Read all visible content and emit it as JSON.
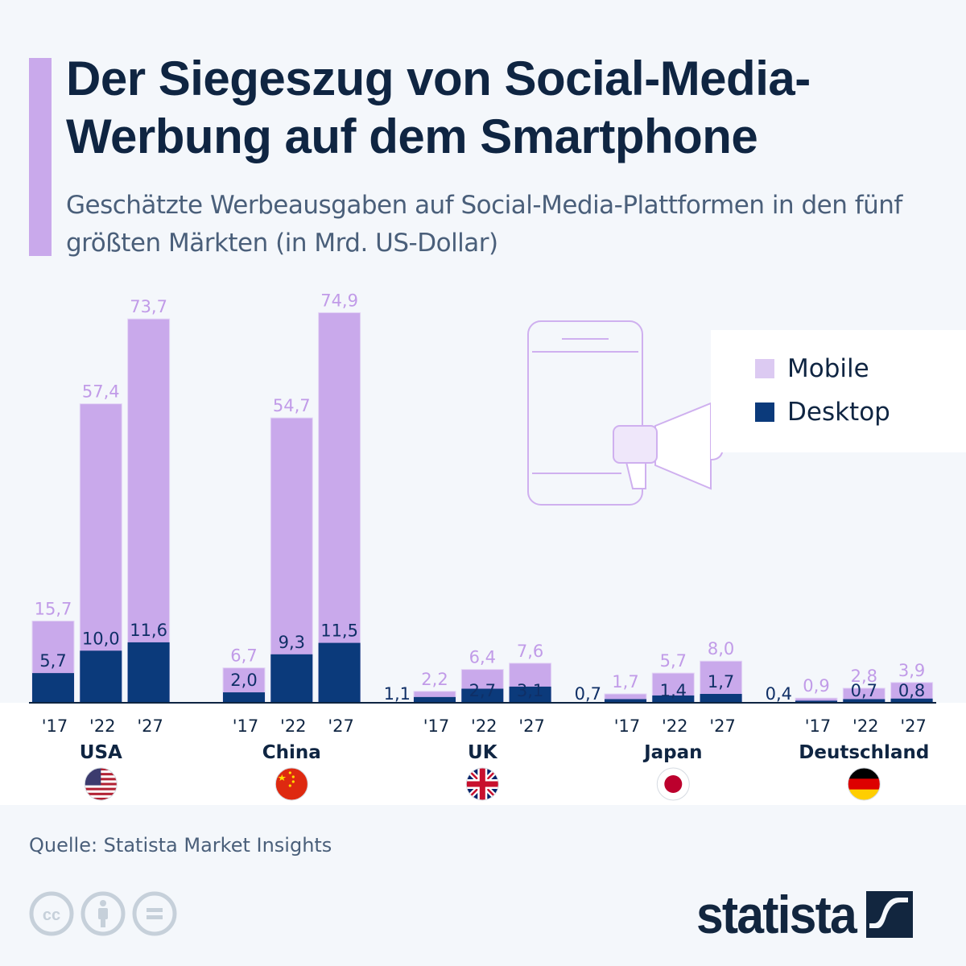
{
  "header": {
    "title": "Der Siegeszug von Social-Media-Werbung auf dem Smartphone",
    "subtitle": "Geschätzte Werbeausgaben auf Social-Media-Plattformen in den fünf größten Märkten (in Mrd. US-Dollar)"
  },
  "legend": {
    "items": [
      {
        "label": "Mobile",
        "color": "#dccaf2"
      },
      {
        "label": "Desktop",
        "color": "#0b3a7b"
      }
    ]
  },
  "footer": {
    "source": "Quelle: Statista Market Insights",
    "logo_text": "statista",
    "license_icons": [
      "cc-icon",
      "attribution-icon",
      "no-derivatives-icon"
    ]
  },
  "colors": {
    "mobile": "#c9a9eb",
    "mobile_label": "#c19be8",
    "desktop": "#0b3a7b",
    "desktop_label": "#0f2f66",
    "text_dark": "#0f2542"
  },
  "chart_data": {
    "type": "bar",
    "stacked": "overlay",
    "title": "Der Siegeszug von Social-Media-Werbung auf dem Smartphone",
    "subtitle": "Geschätzte Werbeausgaben auf Social-Media-Plattformen in den fünf größten Märkten (in Mrd. US-Dollar)",
    "xlabel": "",
    "ylabel": "Mrd. US-Dollar",
    "ylim": [
      0,
      75
    ],
    "grid": false,
    "legend_position": "right",
    "year_labels": [
      "'17",
      "'22",
      "'27"
    ],
    "groups": [
      {
        "country": "USA",
        "flag": "us-flag-icon",
        "mobile": [
          15.7,
          57.4,
          73.7
        ],
        "desktop": [
          5.7,
          10.0,
          11.6
        ],
        "mobile_labels": [
          "15,7",
          "57,4",
          "73,7"
        ],
        "desktop_labels": [
          "5,7",
          "10,0",
          "11,6"
        ]
      },
      {
        "country": "China",
        "flag": "china-flag-icon",
        "mobile": [
          6.7,
          54.7,
          74.9
        ],
        "desktop": [
          2.0,
          9.3,
          11.5
        ],
        "mobile_labels": [
          "6,7",
          "54,7",
          "74,9"
        ],
        "desktop_labels": [
          "2,0",
          "9,3",
          "11,5"
        ]
      },
      {
        "country": "UK",
        "flag": "uk-flag-icon",
        "mobile": [
          2.2,
          6.4,
          7.6
        ],
        "desktop": [
          1.1,
          2.7,
          3.1
        ],
        "mobile_labels": [
          "2,2",
          "6,4",
          "7,6"
        ],
        "desktop_labels": [
          "1,1",
          "2,7",
          "3,1"
        ]
      },
      {
        "country": "Japan",
        "flag": "japan-flag-icon",
        "mobile": [
          1.7,
          5.7,
          8.0
        ],
        "desktop": [
          0.7,
          1.4,
          1.7
        ],
        "mobile_labels": [
          "1,7",
          "5,7",
          "8,0"
        ],
        "desktop_labels": [
          "0,7",
          "1,4",
          "1,7"
        ]
      },
      {
        "country": "Deutschland",
        "flag": "germany-flag-icon",
        "mobile": [
          0.9,
          2.8,
          3.9
        ],
        "desktop": [
          0.4,
          0.7,
          0.8
        ],
        "mobile_labels": [
          "0,9",
          "2,8",
          "3,9"
        ],
        "desktop_labels": [
          "0,4",
          "0,7",
          "0,8"
        ]
      }
    ],
    "series": [
      {
        "name": "Mobile",
        "values": [
          15.7,
          57.4,
          73.7,
          6.7,
          54.7,
          74.9,
          2.2,
          6.4,
          7.6,
          1.7,
          5.7,
          8.0,
          0.9,
          2.8,
          3.9
        ]
      },
      {
        "name": "Desktop",
        "values": [
          5.7,
          10.0,
          11.6,
          2.0,
          9.3,
          11.5,
          1.1,
          2.7,
          3.1,
          0.7,
          1.4,
          1.7,
          0.4,
          0.7,
          0.8
        ]
      }
    ]
  }
}
